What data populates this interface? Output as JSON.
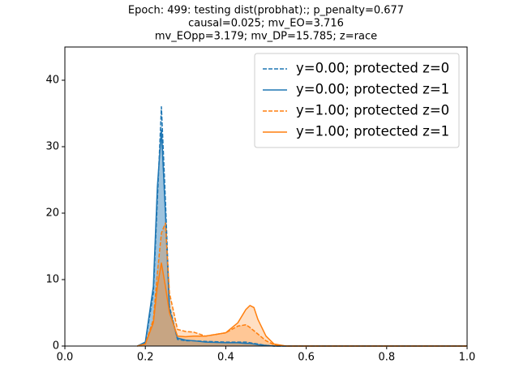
{
  "chart_data": {
    "type": "kde",
    "title": [
      "Epoch: 499: testing dist(probhat):; p_penalty=0.677",
      "causal=0.025; mv_EO=3.716",
      "mv_EOpp=3.179; mv_DP=15.785; z=race"
    ],
    "x": [
      0.18,
      0.2,
      0.22,
      0.23,
      0.24,
      0.25,
      0.26,
      0.28,
      0.3,
      0.32,
      0.35,
      0.4,
      0.43,
      0.45,
      0.46,
      0.47,
      0.48,
      0.5,
      0.52,
      0.55,
      0.6,
      1.0
    ],
    "series": [
      {
        "name": "y=0.00; protected z=0",
        "color": "#1f77b4",
        "linestyle": "dashed",
        "values": [
          0,
          0.5,
          8,
          22,
          36,
          22,
          6,
          1,
          0.8,
          0.8,
          0.7,
          0.6,
          0.6,
          0.6,
          0.5,
          0.4,
          0.3,
          0.1,
          0,
          0,
          0,
          0
        ]
      },
      {
        "name": "y=0.00; protected z=1",
        "color": "#1f77b4",
        "linestyle": "solid",
        "values": [
          0,
          0.6,
          9,
          24,
          32.5,
          20,
          5.5,
          1.2,
          0.9,
          0.8,
          0.6,
          0.5,
          0.5,
          0.4,
          0.4,
          0.3,
          0.2,
          0.1,
          0,
          0,
          0,
          0
        ]
      },
      {
        "name": "y=1.00; protected z=0",
        "color": "#ff7f0e",
        "linestyle": "dashed",
        "values": [
          0,
          0.3,
          4,
          11,
          17,
          18.5,
          8,
          2.5,
          2.2,
          2.1,
          1.5,
          2,
          3,
          3.2,
          2.8,
          2.3,
          1.8,
          0.8,
          0.2,
          0,
          0,
          0
        ]
      },
      {
        "name": "y=1.00; protected z=1",
        "color": "#ff7f0e",
        "linestyle": "solid",
        "values": [
          0,
          0.3,
          3.5,
          9,
          12.5,
          9,
          5,
          1.5,
          1.4,
          1.5,
          1.5,
          2,
          3.5,
          5.5,
          6.1,
          5.8,
          4,
          1.5,
          0.3,
          0,
          0,
          0
        ]
      }
    ],
    "fill": true,
    "xlim": [
      0,
      1
    ],
    "xticks": [
      {
        "value": 0,
        "label": "0.0"
      },
      {
        "value": 0.2,
        "label": "0.2"
      },
      {
        "value": 0.4,
        "label": "0.4"
      },
      {
        "value": 0.6,
        "label": "0.6"
      },
      {
        "value": 0.8,
        "label": "0.8"
      },
      {
        "value": 1,
        "label": "1.0"
      }
    ],
    "ylim": [
      0,
      45
    ],
    "yticks": [
      0,
      10,
      20,
      30,
      40
    ],
    "legend": "upper right"
  }
}
